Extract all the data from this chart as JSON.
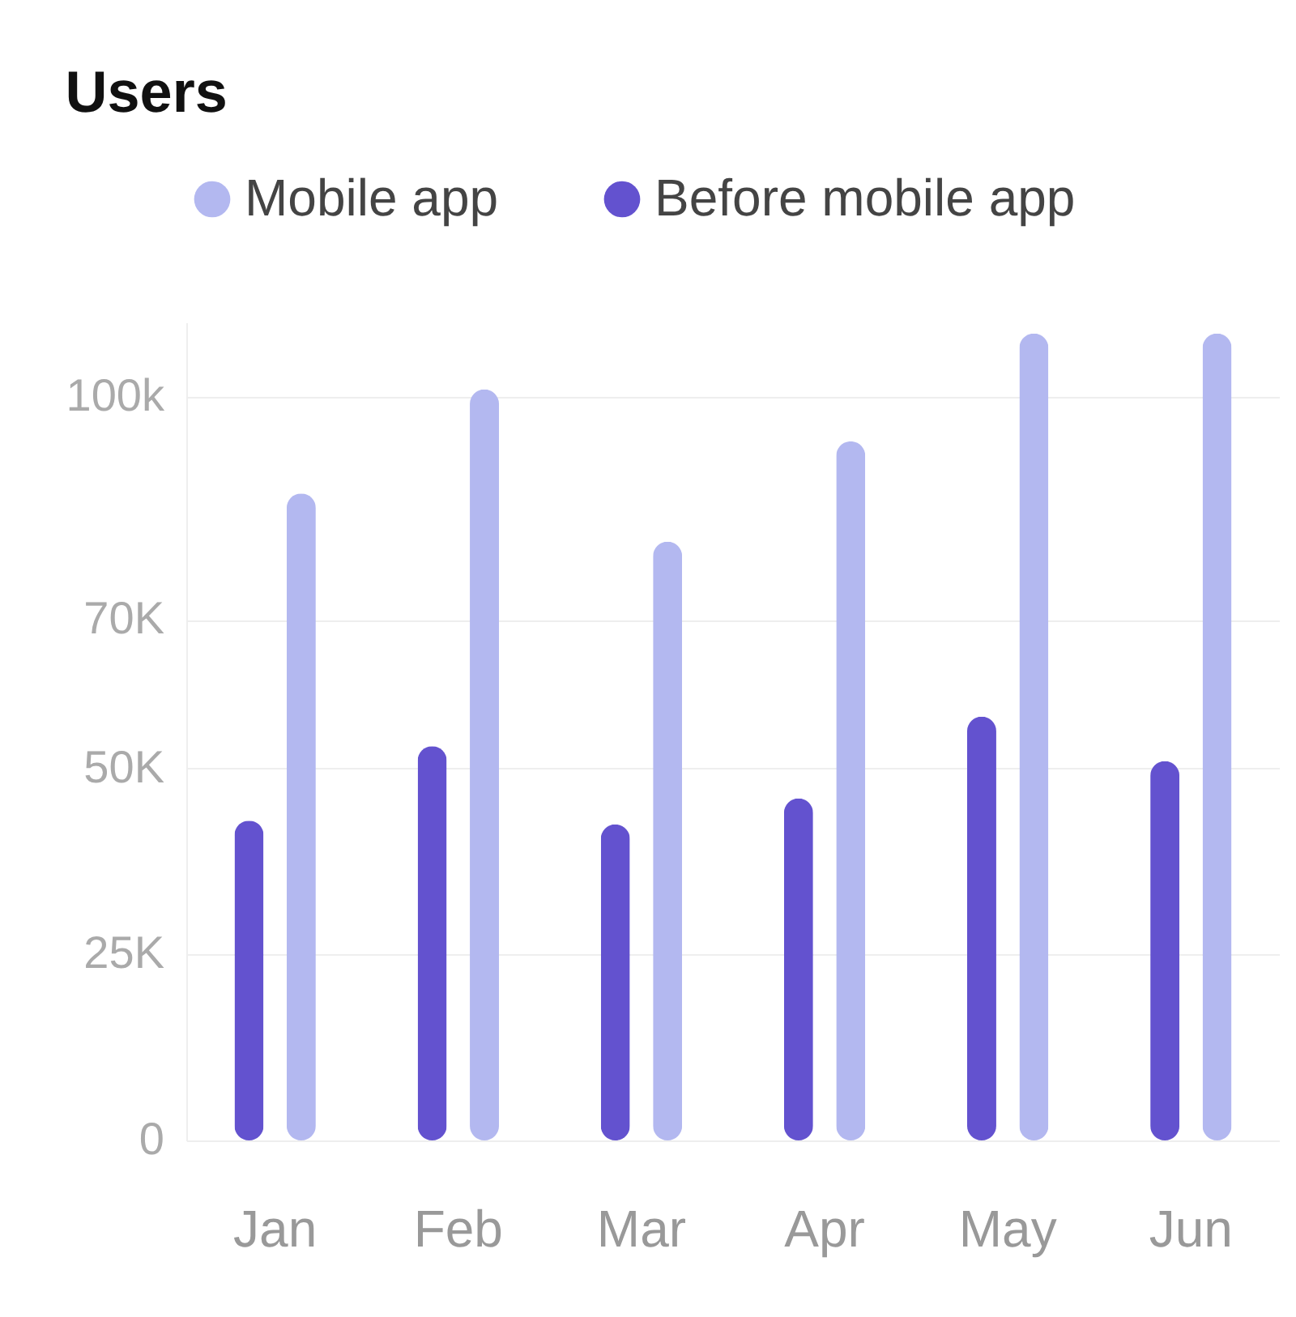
{
  "chart_data": {
    "type": "bar",
    "title": "Users",
    "categories": [
      "Jan",
      "Feb",
      "Mar",
      "Apr",
      "May",
      "Jun"
    ],
    "series": [
      {
        "name": "Before mobile app",
        "color": "#6352cf",
        "values": [
          43000,
          53000,
          42500,
          46000,
          57000,
          51000
        ]
      },
      {
        "name": "Mobile app",
        "color": "#b3b8f0",
        "values": [
          87000,
          101000,
          80500,
          94000,
          108500,
          108500
        ]
      }
    ],
    "ylim": [
      0,
      110000
    ],
    "yticks": [
      0,
      {
        "value": 25000,
        "label": "25K"
      },
      {
        "value": 50000,
        "label": "50K"
      },
      {
        "value": 70000,
        "label": "70K"
      },
      {
        "value": 100000,
        "label": "100k"
      }
    ],
    "grid": "y",
    "legend": "top left"
  }
}
